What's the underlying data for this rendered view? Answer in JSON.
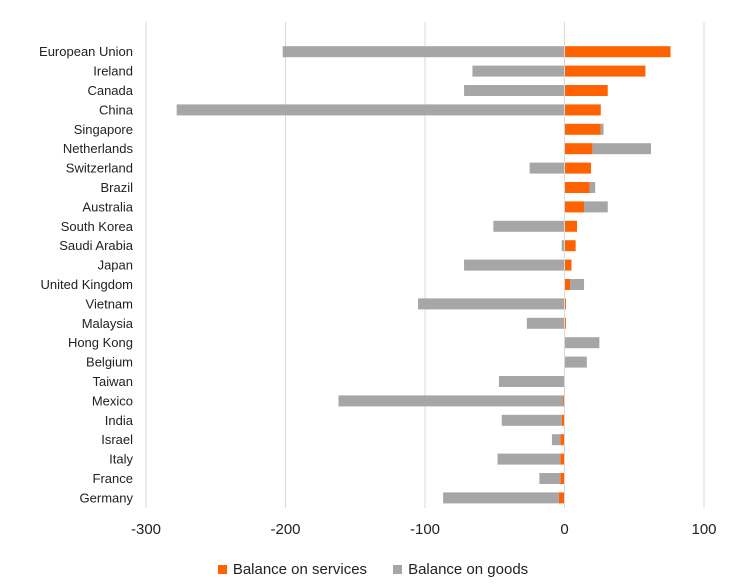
{
  "chart_data": {
    "type": "bar",
    "orientation": "horizontal",
    "stacked": true,
    "categories": [
      "European Union",
      "Ireland",
      "Canada",
      "China",
      "Singapore",
      "Netherlands",
      "Switzerland",
      "Brazil",
      "Australia",
      "South Korea",
      "Saudi Arabia",
      "Japan",
      "United Kingdom",
      "Vietnam",
      "Malaysia",
      "Hong Kong",
      "Belgium",
      "Taiwan",
      "Mexico",
      "India",
      "Israel",
      "Italy",
      "France",
      "Germany"
    ],
    "series": [
      {
        "name": "Balance on services",
        "color": "#FF6200",
        "values": [
          76,
          58,
          31,
          26,
          26,
          20,
          19,
          18,
          14,
          9,
          8,
          5,
          4,
          1,
          1,
          0,
          0,
          0,
          -1,
          -2,
          -3,
          -3,
          -3,
          -4
        ]
      },
      {
        "name": "Balance on goods",
        "color": "#A6A6A6",
        "values": [
          -202,
          -66,
          -72,
          -278,
          2,
          42,
          -25,
          4,
          17,
          -51,
          -2,
          -72,
          10,
          -105,
          -27,
          25,
          16,
          -47,
          -161,
          -43,
          -6,
          -45,
          -15,
          -83
        ]
      }
    ],
    "xlim": [
      -300,
      100
    ],
    "xticks": [
      -300,
      -200,
      -100,
      0,
      100
    ],
    "xtick_labels": [
      "-300",
      "-200",
      "-100",
      "0",
      "100"
    ],
    "grid": "vertical",
    "legend_position": "bottom",
    "legend": [
      "Balance on services",
      "Balance on goods"
    ]
  }
}
